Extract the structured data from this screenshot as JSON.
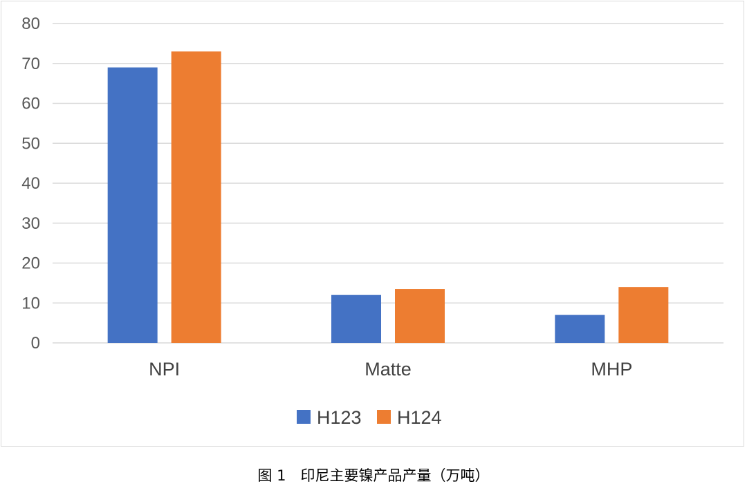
{
  "chart_data": {
    "type": "bar",
    "categories": [
      "NPI",
      "Matte",
      "MHP"
    ],
    "series": [
      {
        "name": "H123",
        "values": [
          69,
          12,
          7
        ],
        "color": "#4472C4"
      },
      {
        "name": "H124",
        "values": [
          73,
          13.5,
          14
        ],
        "color": "#ED7D31"
      }
    ],
    "ylim": [
      0,
      80
    ],
    "yticks": [
      0,
      10,
      20,
      30,
      40,
      50,
      60,
      70,
      80
    ],
    "grid": true,
    "legend": "bottom"
  },
  "caption": "图 1　印尼主要镍产品产量（万吨）"
}
